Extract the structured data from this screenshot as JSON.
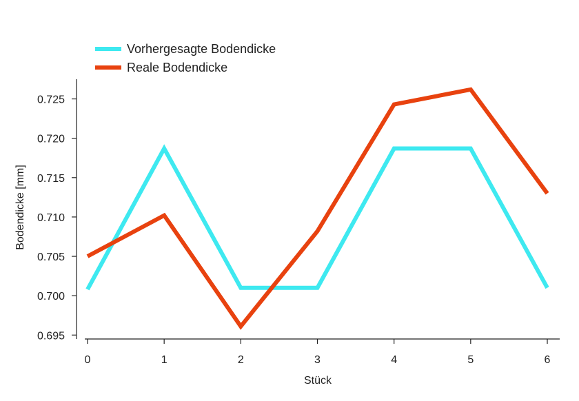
{
  "chart_data": {
    "type": "line",
    "title": "",
    "xlabel": "Stück",
    "ylabel": "Bodendicke [mm]",
    "x": [
      0,
      1,
      2,
      3,
      4,
      5,
      6
    ],
    "xlim": [
      0,
      6
    ],
    "ylim": [
      0.6945,
      0.7275
    ],
    "x_ticks": [
      "0",
      "1",
      "2",
      "3",
      "4",
      "5",
      "6"
    ],
    "y_ticks": [
      "0.695",
      "0.700",
      "0.705",
      "0.710",
      "0.715",
      "0.720",
      "0.725"
    ],
    "grid": false,
    "legend_position": "top-left",
    "series": [
      {
        "name": "Vorhergesagte Bodendicke",
        "color": "#3ee9f0",
        "values": [
          0.7008,
          0.7187,
          0.701,
          0.701,
          0.7187,
          0.7187,
          0.701
        ]
      },
      {
        "name": "Reale Bodendicke",
        "color": "#e8420f",
        "values": [
          0.705,
          0.7102,
          0.6961,
          0.7082,
          0.7243,
          0.7262,
          0.713
        ]
      }
    ]
  }
}
